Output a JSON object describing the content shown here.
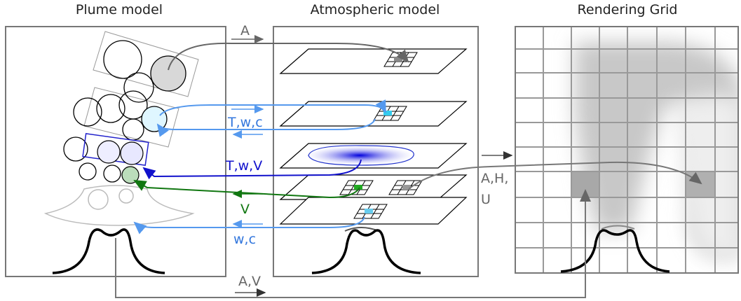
{
  "panels": [
    {
      "title": "Plume model"
    },
    {
      "title": "Atmospheric model"
    },
    {
      "title": "Rendering Grid"
    }
  ],
  "labels": {
    "a": "A",
    "twc": "T,w,c",
    "twv": "T,w,V",
    "v": "V",
    "wc": "w,c",
    "ahu": [
      "A,H,",
      "U"
    ],
    "av": "A,V"
  }
}
